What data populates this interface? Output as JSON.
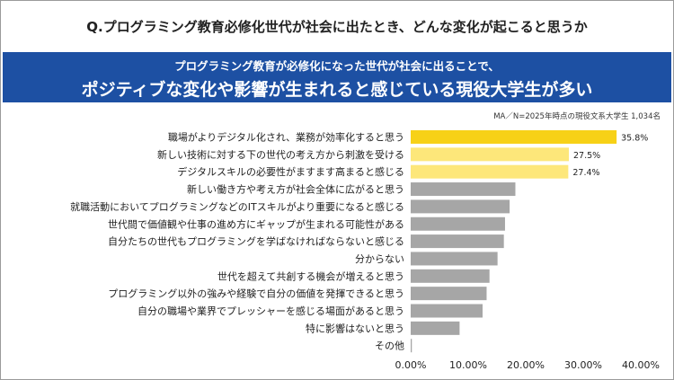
{
  "question": "Q.プログラミング教育必修化世代が社会に出たとき、どんな変化が起こると思うか",
  "headline": {
    "line1": "プログラミング教育が必修化になった世代が社会に出ることで、",
    "line2": "ポジティブな変化や影響が生まれると感じている現役大学生が多い"
  },
  "note": "MA／N=2025年時点の現役文系大学生 1,034名",
  "colors": {
    "top": "#f7d117",
    "highlight": "#fde77a",
    "other": "#a6a6a6",
    "band": "#1d50a3"
  },
  "chart_data": {
    "type": "bar",
    "orientation": "horizontal",
    "categories": [
      "職場がよりデジタル化され、業務が効率化すると思う",
      "新しい技術に対する下の世代の考え方から刺激を受ける",
      "デジタルスキルの必要性がますます高まると感じる",
      "新しい働き方や考え方が社会全体に広がると思う",
      "就職活動においてプログラミングなどのITスキルがより重要になると感じる",
      "世代間で価値観や仕事の進め方にギャップが生まれる可能性がある",
      "自分たちの世代もプログラミングを学ばなければならないと感じる",
      "分からない",
      "世代を超えて共創する機会が増えると思う",
      "プログラミング以外の強みや経験で自分の価値を発揮できると思う",
      "自分の職場や業界でプレッシャーを感じる場面があると思う",
      "特に影響はないと思う",
      "その他"
    ],
    "values": [
      35.8,
      27.5,
      27.4,
      18.2,
      17.2,
      16.4,
      16.2,
      15.1,
      13.7,
      13.2,
      12.5,
      8.5,
      0.2
    ],
    "data_labels": [
      "35.8%",
      "27.5%",
      "27.4%",
      "",
      "",
      "",
      "",
      "",
      "",
      "",
      "",
      "",
      ""
    ],
    "xlim": [
      0,
      40
    ],
    "xticks": [
      "0.00%",
      "10.00%",
      "20.00%",
      "30.00%",
      "40.00%"
    ],
    "grid": false
  }
}
